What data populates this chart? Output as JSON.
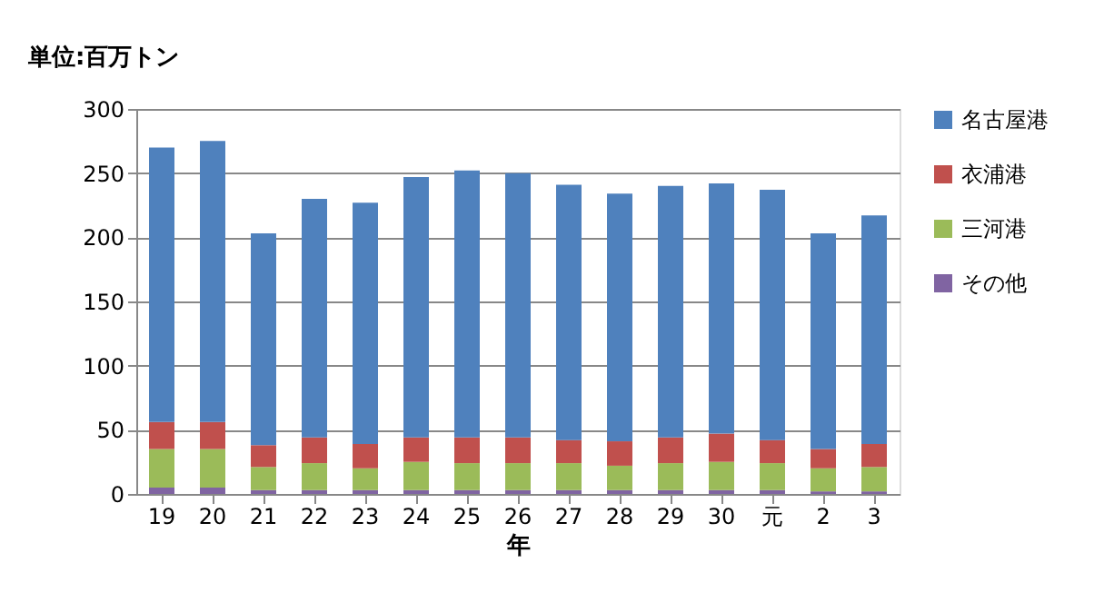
{
  "chart_data": {
    "type": "bar",
    "stacked": true,
    "ylabel": "単位:百万トン",
    "xlabel": "年",
    "categories": [
      "19",
      "20",
      "21",
      "22",
      "23",
      "24",
      "25",
      "26",
      "27",
      "28",
      "29",
      "30",
      "元",
      "2",
      "3"
    ],
    "series": [
      {
        "name": "その他",
        "color": "#8064a2",
        "values": [
          5,
          5,
          3,
          3,
          3,
          3,
          3,
          3,
          3,
          3,
          3,
          3,
          3,
          2,
          2
        ]
      },
      {
        "name": "三河港",
        "color": "#9bbb59",
        "values": [
          30,
          30,
          18,
          21,
          17,
          22,
          21,
          21,
          21,
          19,
          21,
          22,
          21,
          18,
          19
        ]
      },
      {
        "name": "衣浦港",
        "color": "#c0504d",
        "values": [
          21,
          21,
          17,
          20,
          19,
          19,
          20,
          20,
          18,
          19,
          20,
          22,
          18,
          15,
          18
        ]
      },
      {
        "name": "名古屋港",
        "color": "#4f81bd",
        "values": [
          214,
          219,
          165,
          186,
          188,
          203,
          208,
          206,
          199,
          193,
          196,
          195,
          195,
          168,
          178
        ]
      }
    ],
    "ylim": [
      0,
      300
    ],
    "yticks": [
      0,
      50,
      100,
      150,
      200,
      250,
      300
    ],
    "grid": "y",
    "legend": "right"
  }
}
